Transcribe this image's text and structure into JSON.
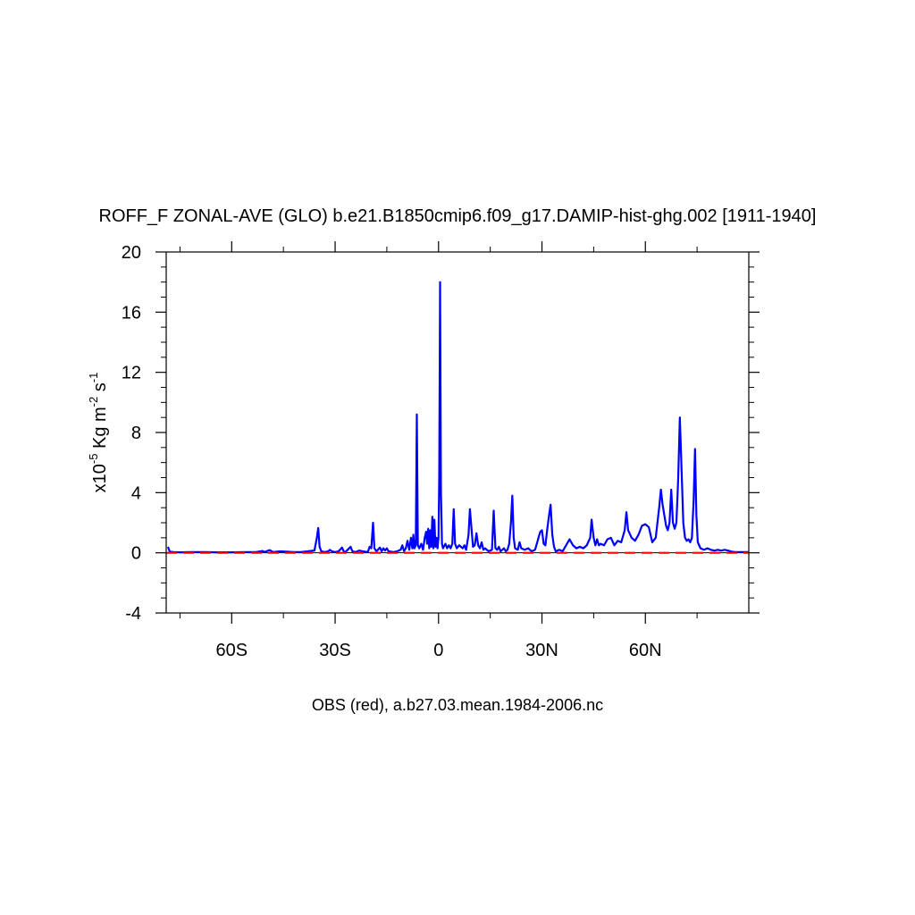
{
  "chart_data": {
    "type": "line",
    "title": "ROFF_F ZONAL-AVE (GLO) b.e21.B1850cmip6.f09_g17.DAMIP-hist-ghg.002 [1911-1940]",
    "xlabel": "OBS (red), a.b27.03.mean.1984-2006.nc",
    "ylabel": {
      "prefix": "x10",
      "exp1": "-5",
      "middle": " Kg m",
      "exp2": "-2",
      "suffix": " s",
      "exp3": "-1"
    },
    "xlim": [
      -79,
      90
    ],
    "ylim": [
      -4,
      20
    ],
    "x_ticks": [
      {
        "value": -60,
        "label": "60S"
      },
      {
        "value": -30,
        "label": "30S"
      },
      {
        "value": 0,
        "label": "0"
      },
      {
        "value": 30,
        "label": "30N"
      },
      {
        "value": 60,
        "label": "60N"
      }
    ],
    "y_ticks": [
      {
        "value": -4,
        "label": "-4"
      },
      {
        "value": 0,
        "label": "0"
      },
      {
        "value": 4,
        "label": "4"
      },
      {
        "value": 8,
        "label": "8"
      },
      {
        "value": 12,
        "label": "12"
      },
      {
        "value": 16,
        "label": "16"
      },
      {
        "value": 20,
        "label": "20"
      }
    ],
    "grid": false,
    "legend": "none",
    "series": [
      {
        "color": "#0000ff",
        "style": "solid",
        "points": [
          [
            -78.5,
            0.4
          ],
          [
            -78,
            0.1
          ],
          [
            -77,
            0.05
          ],
          [
            -75,
            0.03
          ],
          [
            -72,
            0.05
          ],
          [
            -68,
            0.05
          ],
          [
            -64,
            0.03
          ],
          [
            -60,
            0.03
          ],
          [
            -56,
            0.05
          ],
          [
            -53,
            0.05
          ],
          [
            -51,
            0.12
          ],
          [
            -50.5,
            0.05
          ],
          [
            -49,
            0.18
          ],
          [
            -48,
            0.05
          ],
          [
            -46,
            0.1
          ],
          [
            -44,
            0.08
          ],
          [
            -42,
            0.05
          ],
          [
            -40,
            0.05
          ],
          [
            -38,
            0.1
          ],
          [
            -36,
            0.15
          ],
          [
            -35.3,
            1.0
          ],
          [
            -34.9,
            1.65
          ],
          [
            -34.5,
            0.4
          ],
          [
            -34,
            0.1
          ],
          [
            -33,
            0.05
          ],
          [
            -32,
            0.1
          ],
          [
            -31.5,
            0.2
          ],
          [
            -31,
            0.1
          ],
          [
            -30,
            0.05
          ],
          [
            -29,
            0.1
          ],
          [
            -28,
            0.35
          ],
          [
            -27.5,
            0.1
          ],
          [
            -27,
            0.05
          ],
          [
            -25.5,
            0.4
          ],
          [
            -25,
            0.1
          ],
          [
            -24,
            0.05
          ],
          [
            -23,
            0.15
          ],
          [
            -22,
            0.1
          ],
          [
            -20.5,
            0.05
          ],
          [
            -20,
            0.4
          ],
          [
            -19.5,
            0.3
          ],
          [
            -19,
            2.0
          ],
          [
            -18.6,
            0.3
          ],
          [
            -18,
            0.1
          ],
          [
            -17,
            0.35
          ],
          [
            -16.5,
            0.1
          ],
          [
            -16,
            0.3
          ],
          [
            -15.5,
            0.15
          ],
          [
            -15,
            0.3
          ],
          [
            -14.5,
            0.1
          ],
          [
            -13,
            0.05
          ],
          [
            -12,
            0.1
          ],
          [
            -11,
            0.2
          ],
          [
            -10.5,
            0.5
          ],
          [
            -10,
            0.1
          ],
          [
            -9.5,
            0.3
          ],
          [
            -9,
            0.8
          ],
          [
            -8.5,
            0.2
          ],
          [
            -8,
            1.0
          ],
          [
            -7.6,
            0.3
          ],
          [
            -7.3,
            1.2
          ],
          [
            -7,
            0.3
          ],
          [
            -6.6,
            0.5
          ],
          [
            -6.3,
            9.2
          ],
          [
            -6.0,
            0.5
          ],
          [
            -5.6,
            0.3
          ],
          [
            -5,
            0.6
          ],
          [
            -4.5,
            0.2
          ],
          [
            -4,
            1.0
          ],
          [
            -3.6,
            1.4
          ],
          [
            -3.3,
            0.6
          ],
          [
            -3,
            1.6
          ],
          [
            -2.7,
            0.3
          ],
          [
            -2.4,
            1.5
          ],
          [
            -2.1,
            0.4
          ],
          [
            -1.8,
            2.4
          ],
          [
            -1.5,
            0.3
          ],
          [
            -1.2,
            2.2
          ],
          [
            -0.9,
            0.4
          ],
          [
            -0.6,
            1.0
          ],
          [
            -0.3,
            0.3
          ],
          [
            0,
            1.0
          ],
          [
            0.2,
            5.0
          ],
          [
            0.45,
            18.0
          ],
          [
            0.7,
            4.0
          ],
          [
            1.0,
            0.6
          ],
          [
            1.3,
            0.3
          ],
          [
            2,
            0.6
          ],
          [
            2.5,
            0.3
          ],
          [
            3,
            0.5
          ],
          [
            3.5,
            0.3
          ],
          [
            4,
            0.6
          ],
          [
            4.4,
            2.9
          ],
          [
            4.8,
            0.6
          ],
          [
            5.3,
            0.3
          ],
          [
            6,
            0.5
          ],
          [
            7,
            0.3
          ],
          [
            7.5,
            0.5
          ],
          [
            8,
            0.2
          ],
          [
            8.7,
            1.2
          ],
          [
            9.1,
            2.9
          ],
          [
            9.6,
            1.5
          ],
          [
            10,
            0.4
          ],
          [
            10.5,
            0.5
          ],
          [
            11,
            1.3
          ],
          [
            11.5,
            0.5
          ],
          [
            12,
            0.3
          ],
          [
            12.5,
            0.7
          ],
          [
            13,
            0.2
          ],
          [
            13.5,
            0.3
          ],
          [
            14.5,
            0.1
          ],
          [
            15.5,
            0.2
          ],
          [
            16,
            2.8
          ],
          [
            16.5,
            0.3
          ],
          [
            17,
            0.2
          ],
          [
            17.5,
            0.4
          ],
          [
            18,
            0.1
          ],
          [
            19,
            0.3
          ],
          [
            19.5,
            0.1
          ],
          [
            20,
            0.2
          ],
          [
            20.5,
            0.6
          ],
          [
            21,
            2.0
          ],
          [
            21.4,
            3.8
          ],
          [
            21.8,
            1.0
          ],
          [
            22.2,
            0.3
          ],
          [
            23,
            0.2
          ],
          [
            23.5,
            0.7
          ],
          [
            24,
            0.3
          ],
          [
            25,
            0.2
          ],
          [
            26,
            0.3
          ],
          [
            27,
            0.1
          ],
          [
            28,
            0.2
          ],
          [
            29,
            1.0
          ],
          [
            29.5,
            1.4
          ],
          [
            30,
            1.5
          ],
          [
            30.5,
            0.6
          ],
          [
            31,
            0.5
          ],
          [
            31.5,
            1.5
          ],
          [
            32,
            2.4
          ],
          [
            32.5,
            3.2
          ],
          [
            33,
            1.2
          ],
          [
            33.5,
            0.4
          ],
          [
            34,
            0.1
          ],
          [
            35,
            0.2
          ],
          [
            36,
            0.1
          ],
          [
            37,
            0.5
          ],
          [
            38,
            0.9
          ],
          [
            39,
            0.5
          ],
          [
            40,
            0.3
          ],
          [
            41,
            0.4
          ],
          [
            42,
            0.3
          ],
          [
            43,
            0.5
          ],
          [
            44,
            1.0
          ],
          [
            44.4,
            2.2
          ],
          [
            45,
            1.0
          ],
          [
            45.5,
            0.5
          ],
          [
            46,
            0.9
          ],
          [
            46.5,
            0.5
          ],
          [
            47,
            0.6
          ],
          [
            48,
            0.5
          ],
          [
            49,
            0.9
          ],
          [
            50,
            1.0
          ],
          [
            51,
            0.5
          ],
          [
            52,
            0.8
          ],
          [
            53,
            0.7
          ],
          [
            54,
            1.5
          ],
          [
            54.5,
            2.7
          ],
          [
            55,
            1.5
          ],
          [
            56,
            1.0
          ],
          [
            57,
            0.8
          ],
          [
            58,
            1.2
          ],
          [
            59,
            1.8
          ],
          [
            60,
            1.9
          ],
          [
            61,
            1.7
          ],
          [
            62,
            0.7
          ],
          [
            63,
            1.0
          ],
          [
            64,
            3.0
          ],
          [
            64.5,
            4.2
          ],
          [
            65,
            3.2
          ],
          [
            66,
            1.8
          ],
          [
            66.5,
            1.5
          ],
          [
            67,
            2.0
          ],
          [
            67.5,
            4.2
          ],
          [
            68,
            2.0
          ],
          [
            68.5,
            1.6
          ],
          [
            69,
            2.0
          ],
          [
            69.5,
            4.8
          ],
          [
            70,
            9.0
          ],
          [
            70.5,
            5.5
          ],
          [
            71,
            2.0
          ],
          [
            71.5,
            1.0
          ],
          [
            72,
            0.8
          ],
          [
            72.5,
            0.9
          ],
          [
            73,
            0.7
          ],
          [
            73.5,
            1.0
          ],
          [
            74,
            3.5
          ],
          [
            74.4,
            6.9
          ],
          [
            74.8,
            2.5
          ],
          [
            75.2,
            0.7
          ],
          [
            76,
            0.3
          ],
          [
            77,
            0.2
          ],
          [
            78,
            0.3
          ],
          [
            79,
            0.2
          ],
          [
            80,
            0.15
          ],
          [
            81,
            0.2
          ],
          [
            82,
            0.15
          ],
          [
            83,
            0.2
          ],
          [
            84,
            0.15
          ],
          [
            85,
            0.08
          ],
          [
            86,
            0.05
          ],
          [
            88,
            0.05
          ],
          [
            90,
            0.05
          ]
        ]
      },
      {
        "color": "#ff0000",
        "style": "dashed",
        "points": [
          [
            -79,
            0
          ],
          [
            90,
            0
          ]
        ]
      }
    ]
  }
}
